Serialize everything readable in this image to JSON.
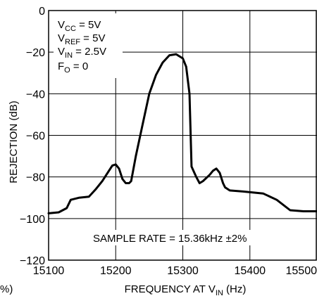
{
  "chart_data": {
    "type": "line",
    "title": "",
    "xlabel": {
      "main": "FREQUENCY AT V",
      "sub": "IN",
      "unit": " (Hz)"
    },
    "ylabel": "REJECTION (dB)",
    "xlim": [
      15100,
      15500
    ],
    "ylim": [
      -120,
      0
    ],
    "xticks": [
      "15100",
      "15200",
      "15300",
      "15400",
      "15500"
    ],
    "yticks": [
      "0",
      "−20",
      "−40",
      "−60",
      "−80",
      "−100",
      "−120"
    ],
    "grid": true,
    "conditions": [
      {
        "main": "V",
        "sub": "CC",
        "rest": " = 5V"
      },
      {
        "main": "V",
        "sub": "REF",
        "rest": " = 5V"
      },
      {
        "main": "V",
        "sub": "IN",
        "rest": " = 2.5V"
      },
      {
        "main": "F",
        "sub": "O",
        "rest": " = 0"
      }
    ],
    "annotation": "SAMPLE RATE = 15.36kHz ±2%",
    "edge_fragment": "%)",
    "series": [
      {
        "x": [
          15100,
          15115,
          15127,
          15133,
          15145,
          15160,
          15170,
          15180,
          15190,
          15195,
          15200,
          15205,
          15210,
          15215,
          15220,
          15223,
          15230,
          15240,
          15250,
          15260,
          15270,
          15280,
          15290,
          15300,
          15305,
          15310,
          15313,
          15320,
          15325,
          15330,
          15340,
          15345,
          15350,
          15355,
          15360,
          15363,
          15370,
          15390,
          15420,
          15440,
          15460,
          15480,
          15500
        ],
        "y": [
          -97.5,
          -97,
          -95,
          -91,
          -90,
          -89.5,
          -86,
          -82,
          -77,
          -74.5,
          -74,
          -76,
          -81,
          -83,
          -83,
          -82,
          -70,
          -55,
          -40,
          -31,
          -25,
          -21.5,
          -21,
          -23,
          -27,
          -40,
          -75,
          -80,
          -83,
          -82,
          -79,
          -77,
          -76,
          -78,
          -83,
          -85,
          -86.5,
          -87,
          -88,
          -91,
          -96,
          -96.5,
          -96.5
        ]
      }
    ]
  }
}
